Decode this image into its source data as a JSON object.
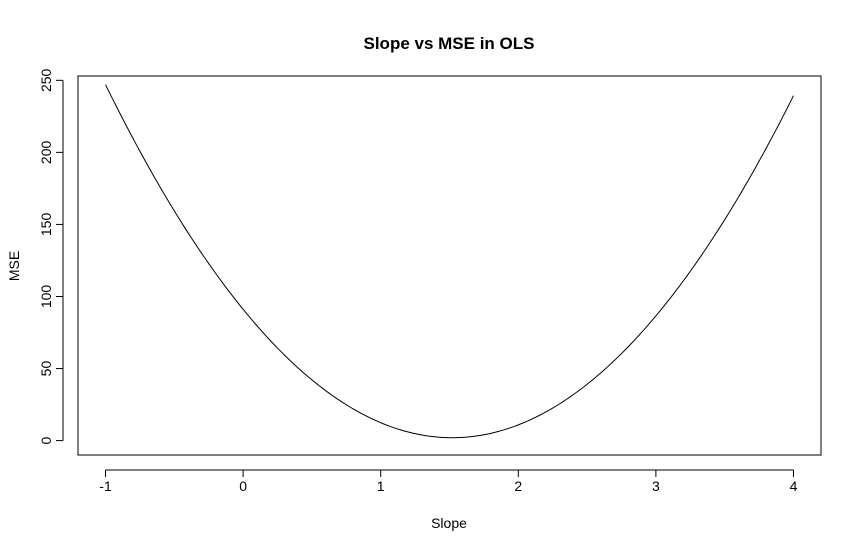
{
  "chart_data": {
    "type": "line",
    "title": "Slope vs MSE in OLS",
    "xlabel": "Slope",
    "ylabel": "MSE",
    "xlim": [
      -1.2,
      4.2
    ],
    "ylim": [
      -10,
      253
    ],
    "xticks": [
      -1,
      0,
      1,
      2,
      3,
      4
    ],
    "yticks": [
      0,
      50,
      100,
      150,
      200,
      250
    ],
    "grid": false,
    "legend": "none",
    "line_color": "#000000",
    "series": [
      {
        "x": [
          -1.0,
          -0.75,
          -0.5,
          -0.25,
          0.0,
          0.25,
          0.5,
          0.75,
          1.0,
          1.25,
          1.5,
          1.75,
          2.0,
          2.25,
          2.5,
          2.75,
          3.0,
          3.25,
          3.5,
          3.75,
          4.0
        ],
        "values": [
          243,
          200,
          161,
          126,
          94,
          66,
          42,
          24,
          11,
          4,
          1,
          3,
          10,
          22,
          39,
          61,
          87,
          118,
          154,
          194,
          239
        ]
      }
    ]
  }
}
